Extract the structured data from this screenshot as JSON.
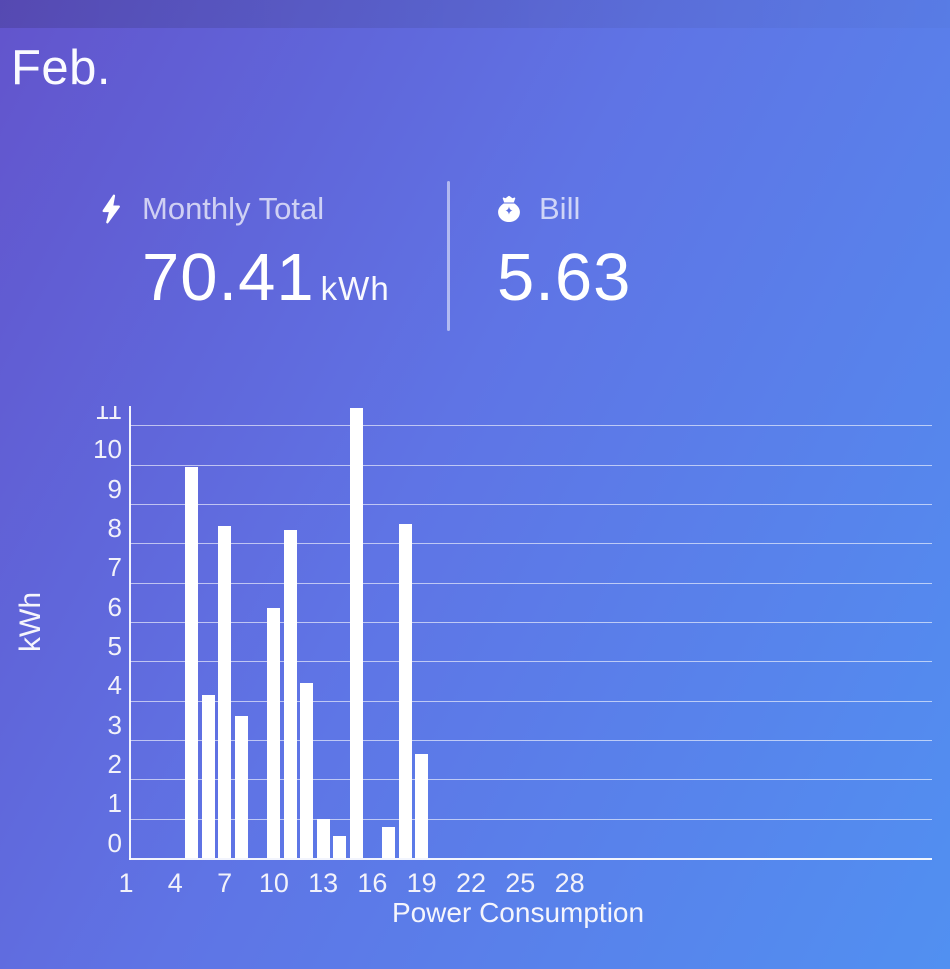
{
  "header": {
    "month": "Feb."
  },
  "stats": {
    "monthly_total": {
      "icon": "lightning-icon",
      "label": "Monthly Total",
      "value": "70.41",
      "unit": "kWh"
    },
    "bill": {
      "icon": "money-bag-icon",
      "label": "Bill",
      "value": "5.63"
    }
  },
  "chart_data": {
    "type": "bar",
    "title": "",
    "xlabel": "Power Consumption",
    "ylabel": "kWh",
    "days": [
      5,
      6,
      7,
      8,
      10,
      11,
      12,
      13,
      14,
      15,
      17,
      18,
      19
    ],
    "values": [
      9.95,
      4.15,
      8.45,
      3.6,
      6.35,
      8.35,
      4.45,
      1.0,
      0.55,
      11.45,
      0.8,
      8.5,
      2.65
    ],
    "x_ticks": [
      1,
      4,
      7,
      10,
      13,
      16,
      19,
      22,
      25,
      28
    ],
    "y_ticks": [
      0,
      1,
      2,
      3,
      4,
      5,
      6,
      7,
      8,
      9,
      10,
      11
    ],
    "xlim": [
      1,
      28
    ],
    "ylim": [
      0,
      11.4
    ],
    "grid": true,
    "legend": "none",
    "bar_color": "#ffffff"
  },
  "colors": {
    "bg_top_left": "#6254cc",
    "bg_middle": "#5f74e5",
    "bg_bottom_right": "#5190f1",
    "bar": "#ffffff",
    "text": "#ffffff",
    "muted_label": "rgba(255,255,255,0.70)"
  }
}
